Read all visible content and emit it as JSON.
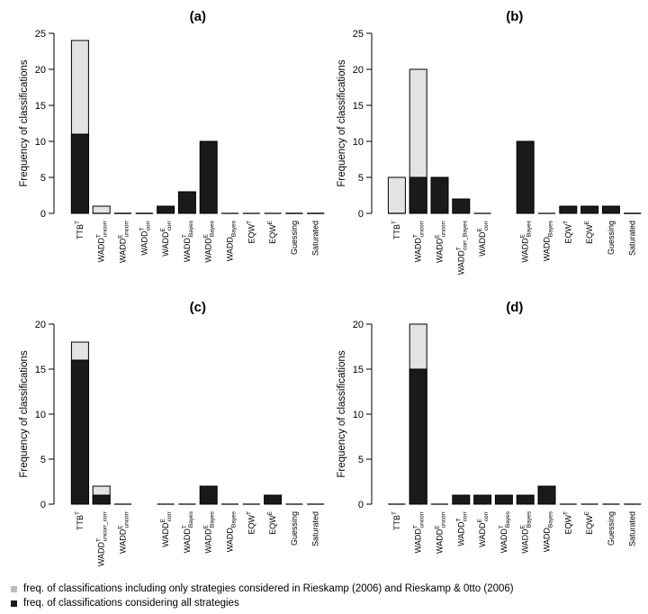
{
  "chart_data": [
    {
      "type": "bar",
      "title": "(a)",
      "ylabel": "Frequency of classifications",
      "ylim": [
        0,
        25
      ],
      "yticks": [
        0,
        5,
        10,
        15,
        20,
        25
      ],
      "categories": [
        {
          "base": "TTB",
          "sup": "T",
          "sub": ""
        },
        {
          "base": "WADD",
          "sup": "T",
          "sub": "uncorr"
        },
        {
          "base": "WADD",
          "sup": "E",
          "sub": "uncorr"
        },
        {
          "base": "WADD",
          "sup": "T",
          "sub": "corr"
        },
        {
          "base": "WADD",
          "sup": "E",
          "sub": "corr"
        },
        {
          "base": "WADD",
          "sup": "T",
          "sub": "Bayes"
        },
        {
          "base": "WADD",
          "sup": "E",
          "sub": "Bayes"
        },
        {
          "base": "WADD",
          "sup": "",
          "sub": "Bayes"
        },
        {
          "base": "EQW",
          "sup": "T",
          "sub": ""
        },
        {
          "base": "EQW",
          "sup": "E",
          "sub": ""
        },
        {
          "base": "Guessing",
          "sup": "",
          "sub": ""
        },
        {
          "base": "Saturated",
          "sup": "",
          "sub": ""
        }
      ],
      "series": [
        {
          "name": "freq. of classifications including only strategies considered in Rieskamp (2006) and Rieskamp & 0tto (2006)",
          "values": [
            24,
            1,
            0,
            0,
            null,
            null,
            null,
            null,
            null,
            null,
            0,
            0
          ]
        },
        {
          "name": "freq. of classifications considering all strategies",
          "values": [
            11,
            0,
            0,
            0,
            1,
            3,
            10,
            0,
            0,
            0,
            0,
            0
          ]
        }
      ]
    },
    {
      "type": "bar",
      "title": "(b)",
      "ylabel": "Frequency of classifications",
      "ylim": [
        0,
        25
      ],
      "yticks": [
        0,
        5,
        10,
        15,
        20,
        25
      ],
      "categories": [
        {
          "base": "TTB",
          "sup": "T",
          "sub": ""
        },
        {
          "base": "WADD",
          "sup": "T",
          "sub": "uncorr"
        },
        {
          "base": "WADD",
          "sup": "E",
          "sub": "uncorr"
        },
        {
          "base": "WADD",
          "sup": "T",
          "sub": "corr_Bayes"
        },
        {
          "base": "WADD",
          "sup": "E",
          "sub": "corr"
        },
        {
          "base": "",
          "sup": "",
          "sub": ""
        },
        {
          "base": "WADD",
          "sup": "E",
          "sub": "Bayes"
        },
        {
          "base": "WADD",
          "sup": "",
          "sub": "Bayes"
        },
        {
          "base": "EQW",
          "sup": "T",
          "sub": ""
        },
        {
          "base": "EQW",
          "sup": "E",
          "sub": ""
        },
        {
          "base": "Guessing",
          "sup": "",
          "sub": ""
        },
        {
          "base": "Saturated",
          "sup": "",
          "sub": ""
        }
      ],
      "series": [
        {
          "name": "freq. of classifications including only strategies considered in Rieskamp (2006) and Rieskamp & 0tto (2006)",
          "values": [
            5,
            20,
            5,
            null,
            null,
            null,
            null,
            null,
            null,
            null,
            null,
            0
          ]
        },
        {
          "name": "freq. of classifications considering all strategies",
          "values": [
            0,
            5,
            5,
            2,
            0,
            null,
            10,
            0,
            1,
            1,
            1,
            0
          ]
        }
      ]
    },
    {
      "type": "bar",
      "title": "(c)",
      "ylabel": "Frequency of classifications",
      "ylim": [
        0,
        20
      ],
      "yticks": [
        0,
        5,
        10,
        15,
        20
      ],
      "categories": [
        {
          "base": "TTB",
          "sup": "T",
          "sub": ""
        },
        {
          "base": "WADD",
          "sup": "T",
          "sub": "uncorr_corr"
        },
        {
          "base": "WADD",
          "sup": "E",
          "sub": "uncorr"
        },
        {
          "base": "",
          "sup": "",
          "sub": ""
        },
        {
          "base": "WADD",
          "sup": "E",
          "sub": "corr"
        },
        {
          "base": "WADD",
          "sup": "T",
          "sub": "Bayes"
        },
        {
          "base": "WADD",
          "sup": "E",
          "sub": "Bayes"
        },
        {
          "base": "WADD",
          "sup": "",
          "sub": "Bayes"
        },
        {
          "base": "EQW",
          "sup": "T",
          "sub": ""
        },
        {
          "base": "EQW",
          "sup": "E",
          "sub": ""
        },
        {
          "base": "Guessing",
          "sup": "",
          "sub": ""
        },
        {
          "base": "Saturated",
          "sup": "",
          "sub": ""
        }
      ],
      "series": [
        {
          "name": "freq. of classifications including only strategies considered in Rieskamp (2006) and Rieskamp & 0tto (2006)",
          "values": [
            18,
            2,
            null,
            null,
            null,
            null,
            null,
            null,
            null,
            null,
            null,
            null
          ]
        },
        {
          "name": "freq. of classifications considering all strategies",
          "values": [
            16,
            1,
            0,
            null,
            0,
            0,
            2,
            0,
            0,
            1,
            0,
            0
          ]
        }
      ]
    },
    {
      "type": "bar",
      "title": "(d)",
      "ylabel": "Frequency of classifications",
      "ylim": [
        0,
        20
      ],
      "yticks": [
        0,
        5,
        10,
        15,
        20
      ],
      "categories": [
        {
          "base": "TTB",
          "sup": "T",
          "sub": ""
        },
        {
          "base": "WADD",
          "sup": "T",
          "sub": "uncorr"
        },
        {
          "base": "WADD",
          "sup": "E",
          "sub": "uncorr"
        },
        {
          "base": "WADD",
          "sup": "T",
          "sub": "corr"
        },
        {
          "base": "WADD",
          "sup": "E",
          "sub": "corr"
        },
        {
          "base": "WADD",
          "sup": "T",
          "sub": "Bayes"
        },
        {
          "base": "WADD",
          "sup": "E",
          "sub": "Bayes"
        },
        {
          "base": "WADD",
          "sup": "",
          "sub": "Bayes"
        },
        {
          "base": "EQW",
          "sup": "T",
          "sub": ""
        },
        {
          "base": "EQW",
          "sup": "E",
          "sub": ""
        },
        {
          "base": "Guessing",
          "sup": "",
          "sub": ""
        },
        {
          "base": "Saturated",
          "sup": "",
          "sub": ""
        }
      ],
      "series": [
        {
          "name": "freq. of classifications including only strategies considered in Rieskamp (2006) and Rieskamp & 0tto (2006)",
          "values": [
            null,
            20,
            null,
            null,
            null,
            null,
            null,
            null,
            null,
            null,
            null,
            null
          ]
        },
        {
          "name": "freq. of classifications considering all strategies",
          "values": [
            0,
            15,
            0,
            1,
            1,
            1,
            1,
            2,
            0,
            0,
            0,
            0
          ]
        }
      ]
    }
  ],
  "colors": {
    "restricted": "#e3e3e3",
    "all_strategies": "#1a1a1a",
    "legend_restricted": "#bdbdbd"
  },
  "legend": [
    {
      "label": "freq. of classifications including only strategies considered in Rieskamp (2006) and Rieskamp & 0tto (2006)",
      "color": "#bdbdbd"
    },
    {
      "label": "freq. of classifications considering all strategies",
      "color": "#1a1a1a"
    }
  ]
}
